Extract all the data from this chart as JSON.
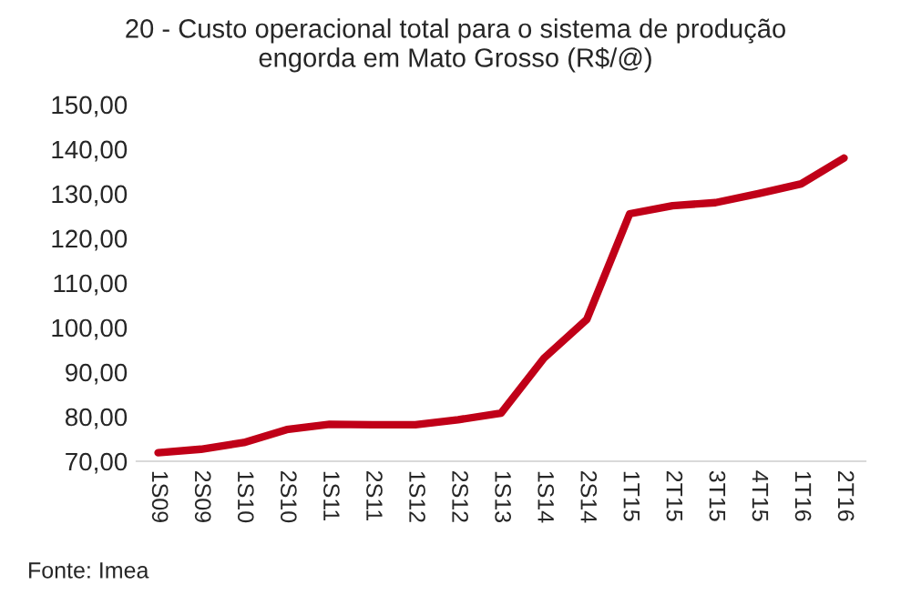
{
  "chart_data": {
    "type": "line",
    "title": "20 - Custo operacional total para o sistema de produção\nengorda em Mato Grosso (R$/@)",
    "categories": [
      "1S09",
      "2S09",
      "1S10",
      "2S10",
      "1S11",
      "2S11",
      "1S12",
      "2S12",
      "1S13",
      "1S14",
      "2S14",
      "1T15",
      "2T15",
      "3T15",
      "4T15",
      "1T16",
      "2T16"
    ],
    "series": [
      {
        "color": "#c00018",
        "values": [
          71.9,
          72.7,
          74.2,
          77.1,
          78.3,
          78.2,
          78.2,
          79.3,
          80.8,
          93.1,
          101.8,
          125.5,
          127.3,
          128.0,
          130.0,
          132.2,
          138.0
        ]
      }
    ],
    "ylim": [
      70,
      150
    ],
    "yticks": [
      {
        "value": 70,
        "label": "70,00"
      },
      {
        "value": 80,
        "label": "80,00"
      },
      {
        "value": 90,
        "label": "90,00"
      },
      {
        "value": 100,
        "label": "100,00"
      },
      {
        "value": 110,
        "label": "110,00"
      },
      {
        "value": 120,
        "label": "120,00"
      },
      {
        "value": 130,
        "label": "130,00"
      },
      {
        "value": 140,
        "label": "140,00"
      },
      {
        "value": 150,
        "label": "150,00"
      }
    ],
    "grid": false,
    "legend": false,
    "marker": "none",
    "line_style": "solid",
    "annotations": [
      "Fonte: Imea"
    ]
  }
}
